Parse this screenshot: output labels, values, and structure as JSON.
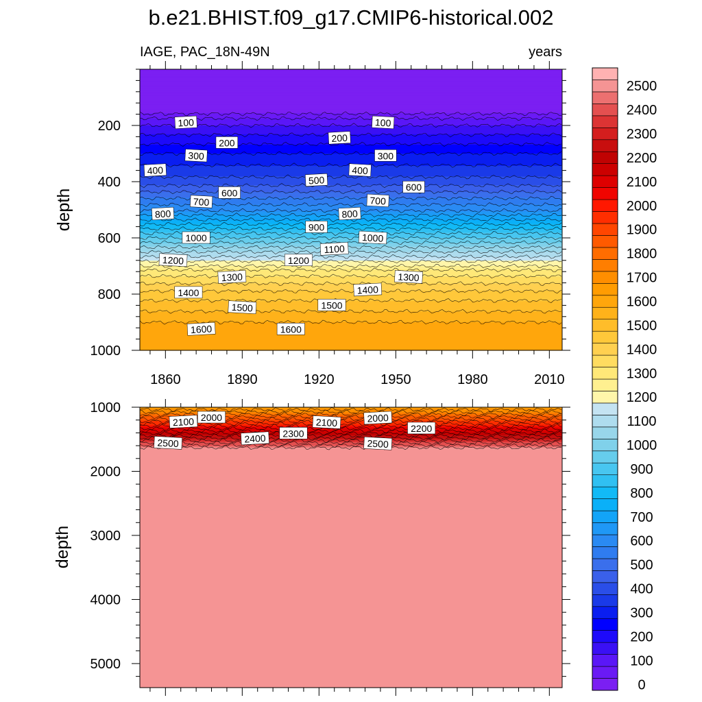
{
  "chart_data": {
    "type": "contour",
    "title": "b.e21.BHIST.f09_g17.CMIP6-historical.002",
    "subtitle_left": "IAGE, PAC_18N-49N",
    "subtitle_right": "years",
    "levels": [
      0,
      50,
      100,
      150,
      200,
      250,
      300,
      350,
      400,
      450,
      500,
      550,
      600,
      650,
      700,
      750,
      800,
      850,
      900,
      950,
      1000,
      1050,
      1100,
      1150,
      1200,
      1250,
      1300,
      1350,
      1400,
      1450,
      1500,
      1550,
      1600,
      1650,
      1700,
      1750,
      1800,
      1850,
      1900,
      1950,
      2000,
      2050,
      2100,
      2150,
      2200,
      2250,
      2300,
      2350,
      2400,
      2450,
      2500,
      2550
    ],
    "colors": [
      "#7b1ff2",
      "#6a1af5",
      "#5a17f7",
      "#3a10f5",
      "#1d0afa",
      "#0000ff",
      "#0a1ef0",
      "#1a3ae8",
      "#2a4ee8",
      "#3a60ea",
      "#3a6fec",
      "#2f7cf0",
      "#2a8af3",
      "#1f98f6",
      "#12a4f8",
      "#0ab0f8",
      "#12baf6",
      "#30c0f2",
      "#48c6f0",
      "#66cdec",
      "#80d1ea",
      "#98d6ea",
      "#aedcee",
      "#c4e3f2",
      "#fff6aa",
      "#fff090",
      "#ffe878",
      "#ffdc60",
      "#ffd050",
      "#ffc83a",
      "#ffbd2a",
      "#ffb21a",
      "#ffa60c",
      "#ff9c02",
      "#ff8e00",
      "#ff7e00",
      "#ff6d00",
      "#ff5a00",
      "#ff4600",
      "#ff2e00",
      "#ff1800",
      "#f00400",
      "#de0000",
      "#cc0000",
      "#c00202",
      "#c80e0e",
      "#d41e1e",
      "#dc3434",
      "#e45050",
      "#ec7070",
      "#f59494",
      "#ffb2b2"
    ],
    "colorbar_labels": [
      "0",
      "100",
      "200",
      "300",
      "400",
      "500",
      "600",
      "700",
      "800",
      "900",
      "1000",
      "1100",
      "1200",
      "1300",
      "1400",
      "1500",
      "1600",
      "1700",
      "1800",
      "1900",
      "2000",
      "2100",
      "2200",
      "2300",
      "2400",
      "2500"
    ],
    "x_ticks": [
      "1860",
      "1890",
      "1920",
      "1950",
      "1980",
      "2010"
    ],
    "xlim": [
      1850,
      2015
    ],
    "upper_panel": {
      "ylabel": "depth",
      "ylim": [
        0,
        1000
      ],
      "y_ticks": [
        "200",
        "400",
        "600",
        "800",
        "1000"
      ],
      "profile_depths": [
        0,
        150,
        170,
        200,
        300,
        400,
        500,
        600,
        700,
        720,
        800,
        900,
        1000
      ],
      "profile_ages": [
        0,
        20,
        90,
        150,
        300,
        420,
        640,
        950,
        1250,
        1320,
        1470,
        1600,
        1650
      ],
      "contour_labels": [
        {
          "text": "100",
          "year": 1868,
          "depth": 190
        },
        {
          "text": "200",
          "year": 1884,
          "depth": 262
        },
        {
          "text": "300",
          "year": 1872,
          "depth": 308
        },
        {
          "text": "400",
          "year": 1856,
          "depth": 360
        },
        {
          "text": "600",
          "year": 1885,
          "depth": 440
        },
        {
          "text": "700",
          "year": 1874,
          "depth": 472
        },
        {
          "text": "800",
          "year": 1859,
          "depth": 515
        },
        {
          "text": "1000",
          "year": 1872,
          "depth": 600
        },
        {
          "text": "1200",
          "year": 1863,
          "depth": 680
        },
        {
          "text": "1300",
          "year": 1886,
          "depth": 740
        },
        {
          "text": "1400",
          "year": 1869,
          "depth": 795
        },
        {
          "text": "1500",
          "year": 1890,
          "depth": 848
        },
        {
          "text": "1600",
          "year": 1874,
          "depth": 925
        },
        {
          "text": "1600",
          "year": 1909,
          "depth": 925
        },
        {
          "text": "100",
          "year": 1945,
          "depth": 190
        },
        {
          "text": "200",
          "year": 1928,
          "depth": 245
        },
        {
          "text": "300",
          "year": 1946,
          "depth": 308
        },
        {
          "text": "400",
          "year": 1936,
          "depth": 360
        },
        {
          "text": "500",
          "year": 1919,
          "depth": 395
        },
        {
          "text": "600",
          "year": 1957,
          "depth": 420
        },
        {
          "text": "700",
          "year": 1943,
          "depth": 468
        },
        {
          "text": "800",
          "year": 1932,
          "depth": 515
        },
        {
          "text": "900",
          "year": 1919,
          "depth": 562
        },
        {
          "text": "1000",
          "year": 1941,
          "depth": 600
        },
        {
          "text": "1100",
          "year": 1926,
          "depth": 640
        },
        {
          "text": "1200",
          "year": 1912,
          "depth": 680
        },
        {
          "text": "1300",
          "year": 1955,
          "depth": 740
        },
        {
          "text": "1400",
          "year": 1939,
          "depth": 785
        },
        {
          "text": "1500",
          "year": 1925,
          "depth": 840
        }
      ]
    },
    "lower_panel": {
      "ylabel": "depth",
      "ylim": [
        1000,
        5375
      ],
      "y_ticks": [
        "1000",
        "2000",
        "3000",
        "4000",
        "5000"
      ],
      "profile_depths": [
        1000,
        1650,
        5375
      ],
      "profile_ages": [
        1650,
        2525,
        2525
      ],
      "contour_labels": [
        {
          "text": "2100",
          "year": 1867,
          "depth": 1230
        },
        {
          "text": "2000",
          "year": 1878,
          "depth": 1160
        },
        {
          "text": "2500",
          "year": 1861,
          "depth": 1560
        },
        {
          "text": "2400",
          "year": 1895,
          "depth": 1490
        },
        {
          "text": "2300",
          "year": 1910,
          "depth": 1410
        },
        {
          "text": "2100",
          "year": 1923,
          "depth": 1240
        },
        {
          "text": "2000",
          "year": 1943,
          "depth": 1170
        },
        {
          "text": "2200",
          "year": 1960,
          "depth": 1330
        },
        {
          "text": "2500",
          "year": 1943,
          "depth": 1570
        }
      ]
    }
  }
}
